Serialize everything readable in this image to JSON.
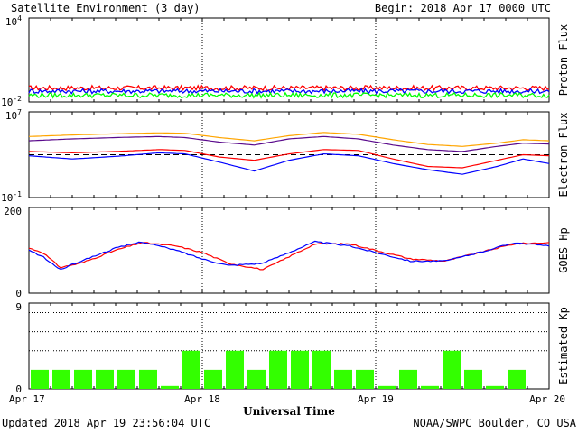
{
  "header": {
    "title": "Satellite Environment (3 day)",
    "begin": "Begin:  2018 Apr 17 0000 UTC"
  },
  "footer": {
    "updated": "Updated 2018 Apr 19 23:56:04 UTC",
    "credit": "NOAA/SWPC Boulder, CO USA"
  },
  "x_axis": {
    "title": "Universal Time",
    "ticks": [
      "Apr 17",
      "Apr 18",
      "Apr 19",
      "Apr 20"
    ],
    "range_days": [
      0,
      3
    ]
  },
  "colors": {
    "red": "#ff0000",
    "blue": "#0000ff",
    "green": "#00ff00",
    "orange": "#ffa500",
    "purple": "#5a0a8c",
    "kp_bar": "#33ff00",
    "frame": "#000000"
  },
  "chart_data": [
    {
      "type": "line",
      "id": "proton",
      "ylabel": "Proton Flux",
      "yscale": "log",
      "ylim": [
        0.01,
        10000
      ],
      "ytick_labels": [
        {
          "base": "10",
          "exp": "4",
          "value": 10000
        },
        {
          "base": "10",
          "exp": "-2",
          "value": 0.01
        }
      ],
      "reference_lines": [
        10
      ],
      "series": [
        {
          "color": "red",
          "x": [
            0,
            0.5,
            1,
            1.5,
            2,
            2.5,
            3
          ],
          "y": [
            0.1,
            0.1,
            0.1,
            0.1,
            0.1,
            0.1,
            0.1
          ]
        },
        {
          "color": "blue",
          "x": [
            0,
            0.5,
            1,
            1.5,
            2,
            2.5,
            3
          ],
          "y": [
            0.06,
            0.06,
            0.06,
            0.06,
            0.06,
            0.06,
            0.06
          ]
        },
        {
          "color": "green",
          "x": [
            0,
            0.5,
            1,
            1.5,
            2,
            2.5,
            3
          ],
          "y": [
            0.03,
            0.03,
            0.03,
            0.03,
            0.03,
            0.03,
            0.03
          ]
        }
      ]
    },
    {
      "type": "line",
      "id": "electron",
      "ylabel": "Electron Flux",
      "yscale": "log",
      "ylim": [
        0.1,
        10000000
      ],
      "ytick_labels": [
        {
          "base": "10",
          "exp": "7",
          "value": 10000000
        },
        {
          "base": "10",
          "exp": "-1",
          "value": 0.1
        }
      ],
      "reference_lines": [
        1000
      ],
      "series": [
        {
          "color": "orange",
          "x": [
            0,
            0.25,
            0.5,
            0.75,
            0.9,
            1.1,
            1.3,
            1.5,
            1.7,
            1.9,
            2.1,
            2.3,
            2.5,
            2.7,
            2.85,
            3
          ],
          "y": [
            50000,
            70000,
            90000,
            110000,
            100000,
            40000,
            20000,
            60000,
            120000,
            80000,
            25000,
            9000,
            6000,
            12000,
            25000,
            20000
          ]
        },
        {
          "color": "purple",
          "x": [
            0,
            0.25,
            0.5,
            0.75,
            0.9,
            1.1,
            1.3,
            1.5,
            1.7,
            1.9,
            2.1,
            2.3,
            2.5,
            2.7,
            2.85,
            3
          ],
          "y": [
            20000,
            30000,
            40000,
            50000,
            40000,
            15000,
            8000,
            30000,
            50000,
            30000,
            8000,
            3000,
            2000,
            6000,
            12000,
            10000
          ]
        },
        {
          "color": "red",
          "x": [
            0,
            0.25,
            0.5,
            0.75,
            0.9,
            1.1,
            1.3,
            1.5,
            1.7,
            1.9,
            2.1,
            2.3,
            2.5,
            2.7,
            2.85,
            3
          ],
          "y": [
            2000,
            1500,
            2000,
            3000,
            2500,
            600,
            300,
            1200,
            3000,
            2500,
            400,
            80,
            60,
            300,
            1000,
            800
          ]
        },
        {
          "color": "blue",
          "x": [
            0,
            0.25,
            0.5,
            0.75,
            0.9,
            1.1,
            1.3,
            1.5,
            1.7,
            1.9,
            2.1,
            2.3,
            2.5,
            2.7,
            2.85,
            3
          ],
          "y": [
            800,
            400,
            700,
            1500,
            1200,
            200,
            30,
            300,
            1200,
            800,
            150,
            40,
            15,
            80,
            400,
            150
          ]
        }
      ]
    },
    {
      "type": "line",
      "id": "goes_hp",
      "ylabel": "GOES Hp",
      "yscale": "linear",
      "ylim": [
        0,
        200
      ],
      "ytick_labels": [
        {
          "base": "200",
          "exp": "",
          "value": 200
        },
        {
          "base": "0",
          "exp": "",
          "value": 0
        }
      ],
      "reference_lines": [],
      "series": [
        {
          "color": "red",
          "x": [
            0,
            0.08,
            0.18,
            0.3,
            0.5,
            0.65,
            0.85,
            1.0,
            1.15,
            1.35,
            1.5,
            1.65,
            1.85,
            2.0,
            2.2,
            2.4,
            2.6,
            2.8,
            3.0
          ],
          "y": [
            105,
            95,
            60,
            70,
            100,
            118,
            110,
            95,
            70,
            55,
            85,
            115,
            115,
            100,
            80,
            75,
            95,
            115,
            118
          ]
        },
        {
          "color": "blue",
          "x": [
            0,
            0.08,
            0.18,
            0.3,
            0.5,
            0.65,
            0.85,
            1.0,
            1.15,
            1.35,
            1.5,
            1.65,
            1.85,
            2.0,
            2.2,
            2.4,
            2.6,
            2.8,
            3.0
          ],
          "y": [
            100,
            85,
            55,
            75,
            105,
            120,
            100,
            80,
            65,
            70,
            95,
            120,
            110,
            95,
            75,
            75,
            95,
            118,
            110
          ]
        }
      ]
    },
    {
      "type": "bar",
      "id": "kp",
      "ylabel": "Estimated Kp",
      "ylim": [
        0,
        9
      ],
      "ytick_labels": [
        {
          "base": "9",
          "exp": "",
          "value": 9
        },
        {
          "base": "0",
          "exp": "",
          "value": 0
        }
      ],
      "dotted_levels": [
        4,
        6,
        8
      ],
      "x_start_days": 0,
      "bar_width_days": 0.125,
      "values": [
        2,
        2,
        2,
        2,
        2,
        2,
        0.3,
        4,
        2,
        4,
        2,
        4,
        4,
        4,
        2,
        2,
        0.3,
        2,
        0.3,
        4,
        2,
        0.3,
        2,
        0
      ]
    }
  ]
}
